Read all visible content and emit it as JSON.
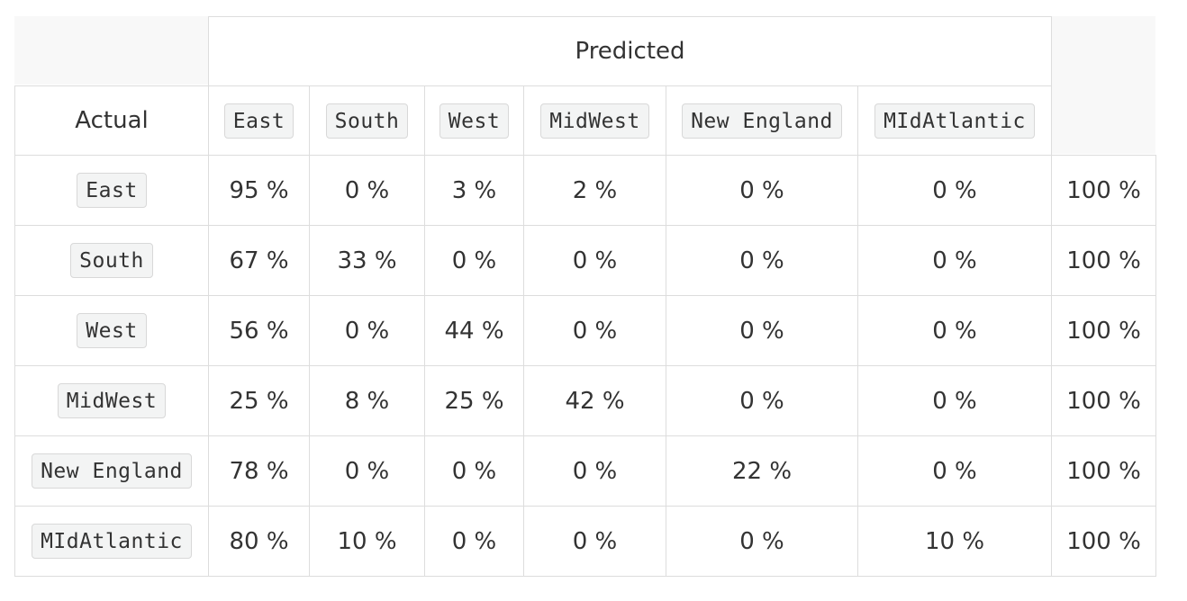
{
  "header": {
    "predicted": "Predicted",
    "actual": "Actual"
  },
  "classes": [
    "East",
    "South",
    "West",
    "MidWest",
    "New England",
    "MIdAtlantic"
  ],
  "rows": [
    {
      "label": "East",
      "cells": [
        "95 %",
        "0 %",
        "3 %",
        "2 %",
        "0 %",
        "0 %"
      ],
      "total": "100 %"
    },
    {
      "label": "South",
      "cells": [
        "67 %",
        "33 %",
        "0 %",
        "0 %",
        "0 %",
        "0 %"
      ],
      "total": "100 %"
    },
    {
      "label": "West",
      "cells": [
        "56 %",
        "0 %",
        "44 %",
        "0 %",
        "0 %",
        "0 %"
      ],
      "total": "100 %"
    },
    {
      "label": "MidWest",
      "cells": [
        "25 %",
        "8 %",
        "25 %",
        "42 %",
        "0 %",
        "0 %"
      ],
      "total": "100 %"
    },
    {
      "label": "New England",
      "cells": [
        "78 %",
        "0 %",
        "0 %",
        "0 %",
        "22 %",
        "0 %"
      ],
      "total": "100 %"
    },
    {
      "label": "MIdAtlantic",
      "cells": [
        "80 %",
        "10 %",
        "0 %",
        "0 %",
        "0 %",
        "10 %"
      ],
      "total": "100 %"
    }
  ],
  "colors": {
    "correct": "#2ea44f",
    "incorrect": "#e74c3c",
    "text": "#333333",
    "border": "#dddddd",
    "header_bg": "#f8f8f8"
  }
}
